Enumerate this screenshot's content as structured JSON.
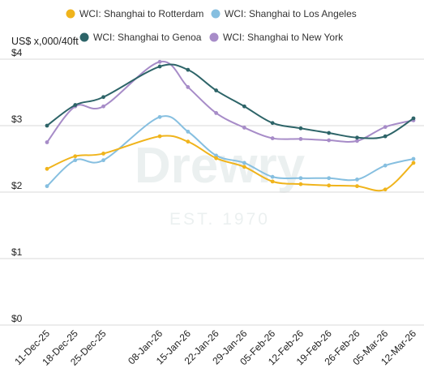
{
  "chart_data": {
    "type": "line",
    "title": "",
    "ylabel": "US$ x,000/40ft",
    "xlabel": "",
    "ylim": [
      0,
      4
    ],
    "yticks": [
      0,
      1,
      2,
      3,
      4
    ],
    "ytick_labels": [
      "$0",
      "$1",
      "$2",
      "$3",
      "$4"
    ],
    "grid": true,
    "legend": "top",
    "categories": [
      "11-Dec-25",
      "18-Dec-25",
      "25-Dec-25",
      "08-Jan-26",
      "15-Jan-26",
      "22-Jan-26",
      "29-Jan-26",
      "05-Feb-26",
      "12-Feb-26",
      "19-Feb-26",
      "26-Feb-26",
      "05-Mar-26",
      "12-Mar-26"
    ],
    "x": [
      0,
      7,
      14,
      28,
      35,
      42,
      49,
      56,
      63,
      70,
      77,
      84,
      91
    ],
    "series": [
      {
        "name": "WCI: Shanghai to Rotterdam",
        "color": "#f0b41c",
        "values": [
          2.35,
          2.54,
          2.58,
          2.84,
          2.76,
          2.51,
          2.38,
          2.16,
          2.12,
          2.1,
          2.09,
          2.04,
          2.44
        ]
      },
      {
        "name": "WCI: Shanghai to Los Angeles",
        "color": "#86bfe0",
        "values": [
          2.09,
          2.48,
          2.48,
          3.13,
          2.91,
          2.55,
          2.44,
          2.23,
          2.21,
          2.21,
          2.19,
          2.4,
          2.5
        ]
      },
      {
        "name": "WCI: Shanghai to Genoa",
        "color": "#2d6468",
        "values": [
          3.0,
          3.31,
          3.43,
          3.89,
          3.84,
          3.53,
          3.29,
          3.04,
          2.96,
          2.89,
          2.82,
          2.84,
          3.11
        ]
      },
      {
        "name": "WCI: Shanghai to New York",
        "color": "#a78cc8",
        "values": [
          2.75,
          3.29,
          3.29,
          3.96,
          3.58,
          3.19,
          2.97,
          2.81,
          2.8,
          2.78,
          2.77,
          2.98,
          3.08
        ]
      }
    ],
    "watermark": {
      "text": "Drewry",
      "subtext": "EST. 1970"
    }
  }
}
